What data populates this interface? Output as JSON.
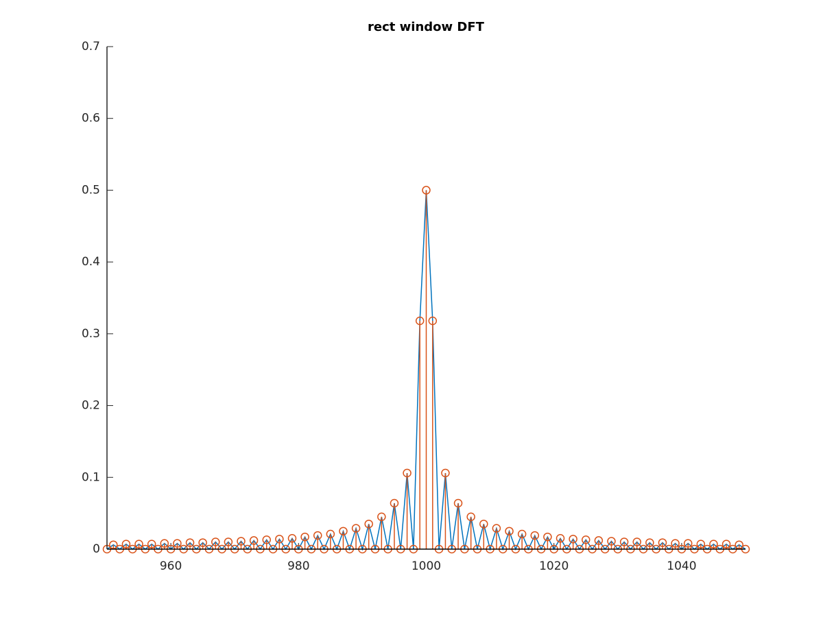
{
  "chart_data": {
    "type": "stem",
    "title": "rect window DFT",
    "x": [
      950,
      951,
      952,
      953,
      954,
      955,
      956,
      957,
      958,
      959,
      960,
      961,
      962,
      963,
      964,
      965,
      966,
      967,
      968,
      969,
      970,
      971,
      972,
      973,
      974,
      975,
      976,
      977,
      978,
      979,
      980,
      981,
      982,
      983,
      984,
      985,
      986,
      987,
      988,
      989,
      990,
      991,
      992,
      993,
      994,
      995,
      996,
      997,
      998,
      999,
      1000,
      1001,
      1002,
      1003,
      1004,
      1005,
      1006,
      1007,
      1008,
      1009,
      1010,
      1011,
      1012,
      1013,
      1014,
      1015,
      1016,
      1017,
      1018,
      1019,
      1020,
      1021,
      1022,
      1023,
      1024,
      1025,
      1026,
      1027,
      1028,
      1029,
      1030,
      1031,
      1032,
      1033,
      1034,
      1035,
      1036,
      1037,
      1038,
      1039,
      1040,
      1041,
      1042,
      1043,
      1044,
      1045,
      1046,
      1047,
      1048,
      1049,
      1050
    ],
    "series": [
      {
        "color": "#0072bd",
        "style": "line",
        "values": [
          0,
          0.006,
          0,
          0.007,
          0,
          0.007,
          0,
          0.007,
          0,
          0.008,
          0,
          0.008,
          0,
          0.009,
          0,
          0.009,
          0,
          0.01,
          0,
          0.01,
          0,
          0.011,
          0,
          0.012,
          0,
          0.013,
          0,
          0.014,
          0,
          0.015,
          0,
          0.017,
          0,
          0.019,
          0,
          0.021,
          0,
          0.025,
          0,
          0.029,
          0,
          0.035,
          0,
          0.045,
          0,
          0.064,
          0,
          0.106,
          0,
          0.318,
          0.5,
          0.318,
          0,
          0.106,
          0,
          0.064,
          0,
          0.045,
          0,
          0.035,
          0,
          0.029,
          0,
          0.025,
          0,
          0.021,
          0,
          0.019,
          0,
          0.017,
          0,
          0.015,
          0,
          0.014,
          0,
          0.013,
          0,
          0.012,
          0,
          0.011,
          0,
          0.01,
          0,
          0.01,
          0,
          0.009,
          0,
          0.009,
          0,
          0.008,
          0,
          0.008,
          0,
          0.007,
          0,
          0.007,
          0,
          0.007,
          0,
          0.006,
          0
        ]
      },
      {
        "color": "#d95319",
        "style": "stem",
        "values": [
          0,
          0.006,
          0,
          0.007,
          0,
          0.007,
          0,
          0.007,
          0,
          0.008,
          0,
          0.008,
          0,
          0.009,
          0,
          0.009,
          0,
          0.01,
          0,
          0.01,
          0,
          0.011,
          0,
          0.012,
          0,
          0.013,
          0,
          0.014,
          0,
          0.015,
          0,
          0.017,
          0,
          0.019,
          0,
          0.021,
          0,
          0.025,
          0,
          0.029,
          0,
          0.035,
          0,
          0.045,
          0,
          0.064,
          0,
          0.106,
          0,
          0.318,
          0.5,
          0.318,
          0,
          0.106,
          0,
          0.064,
          0,
          0.045,
          0,
          0.035,
          0,
          0.029,
          0,
          0.025,
          0,
          0.021,
          0,
          0.019,
          0,
          0.017,
          0,
          0.015,
          0,
          0.014,
          0,
          0.013,
          0,
          0.012,
          0,
          0.011,
          0,
          0.01,
          0,
          0.01,
          0,
          0.009,
          0,
          0.009,
          0,
          0.008,
          0,
          0.008,
          0,
          0.007,
          0,
          0.007,
          0,
          0.007,
          0,
          0.006,
          0
        ]
      }
    ],
    "xlim": [
      950,
      1050
    ],
    "xticks": [
      960,
      980,
      1000,
      1020,
      1040
    ],
    "ylim": [
      0,
      0.7
    ],
    "yticks": [
      0,
      0.1,
      0.2,
      0.3,
      0.4,
      0.5,
      0.6,
      0.7
    ],
    "grid": false
  }
}
